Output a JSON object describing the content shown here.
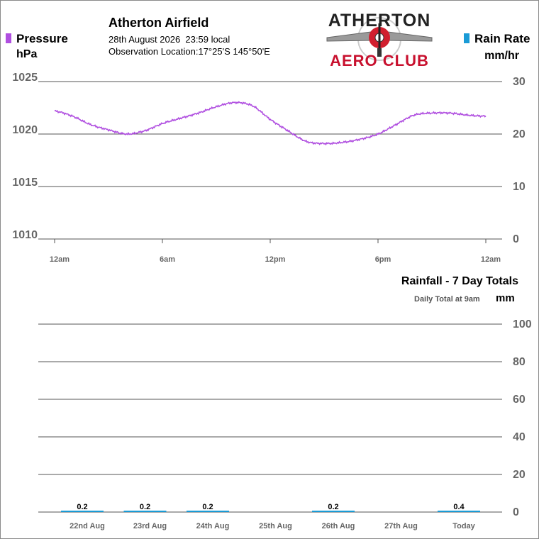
{
  "header": {
    "station_name": "Atherton Airfield",
    "datetime": "28th August 2026  23:59 local",
    "location": "Observation Location:17°25'S 145°50'E"
  },
  "logo": {
    "line1": "ATHERTON",
    "line2": "AERO CLUB"
  },
  "colors": {
    "pressure": "#b04fe0",
    "rain": "#1a9bd6",
    "grid": "#555555",
    "axis_text": "#666666"
  },
  "legend": {
    "left": {
      "label": "Pressure",
      "unit": "hPa",
      "color_name": "pressure-swatch"
    },
    "right": {
      "label": "Rain Rate",
      "unit": "mm/hr",
      "color_name": "rain-swatch"
    }
  },
  "rain_totals": {
    "title": "Rainfall - 7 Day Totals",
    "subtitle": "Daily Total at 9am",
    "unit": "mm"
  },
  "chart_data": [
    {
      "type": "line",
      "x_ticks": [
        "12am",
        "6am",
        "12pm",
        "6pm",
        "12am"
      ],
      "y_left_ticks": [
        "1025",
        "1020",
        "1015",
        "1010"
      ],
      "y_right_ticks": [
        "30",
        "20",
        "10",
        "0"
      ],
      "ylim": [
        1010,
        1025
      ],
      "y2lim": [
        0,
        30
      ],
      "grid": true,
      "series": [
        {
          "name": "Pressure",
          "x_hours": [
            0,
            1,
            2,
            3,
            4,
            5,
            6,
            7,
            8,
            9,
            10,
            11,
            12,
            13,
            14,
            15,
            16,
            17,
            18,
            19,
            20,
            21,
            22,
            23,
            24
          ],
          "values": [
            1022.2,
            1021.7,
            1020.9,
            1020.4,
            1020.0,
            1020.3,
            1021.0,
            1021.5,
            1022.0,
            1022.6,
            1023.0,
            1022.7,
            1021.4,
            1020.3,
            1019.3,
            1019.1,
            1019.2,
            1019.5,
            1020.0,
            1020.9,
            1021.8,
            1022.0,
            1022.0,
            1021.8,
            1021.7
          ]
        },
        {
          "name": "Rain Rate",
          "x_hours": [],
          "values": []
        }
      ]
    },
    {
      "type": "bar",
      "title": "Rainfall - 7 Day Totals",
      "categories": [
        "22nd Aug",
        "23rd Aug",
        "24th Aug",
        "25th Aug",
        "26th Aug",
        "27th Aug",
        "Today"
      ],
      "values": [
        0.2,
        0.2,
        0.2,
        0,
        0.2,
        0,
        0.4
      ],
      "data_labels": [
        "0.2",
        "0.2",
        "0.2",
        "",
        "0.2",
        "",
        "0.4"
      ],
      "y_ticks": [
        "100",
        "80",
        "60",
        "40",
        "20",
        "0"
      ],
      "ylim": [
        0,
        100
      ],
      "grid": true
    }
  ]
}
